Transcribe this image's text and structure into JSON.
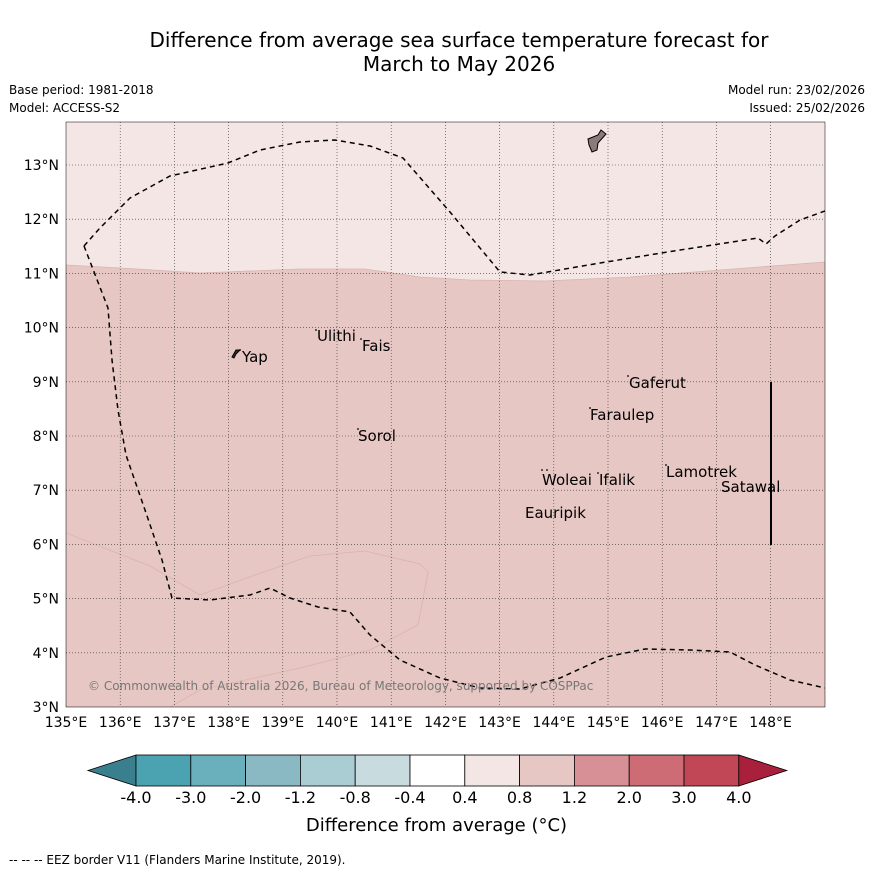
{
  "title_line1": "Difference from average sea surface temperature forecast for",
  "title_line2": "March to May 2026",
  "base_period": "Base period: 1981-2018",
  "model": "Model: ACCESS-S2",
  "model_run": "Model run: 23/02/2026",
  "issued": "Issued: 25/02/2026",
  "copyright": "© Commonwealth of Australia 2026, Bureau of Meteorology, supported by COSPPac",
  "footnote": "--  --  -- EEZ border V11 (Flanders Marine Institute, 2019).",
  "map": {
    "lon_range": [
      135,
      149
    ],
    "lat_range": [
      3,
      13.8
    ],
    "lon_labels": [
      "135°E",
      "136°E",
      "137°E",
      "138°E",
      "139°E",
      "140°E",
      "141°E",
      "142°E",
      "143°E",
      "144°E",
      "145°E",
      "146°E",
      "147°E",
      "148°E"
    ],
    "lat_labels": [
      "3°N",
      "4°N",
      "5°N",
      "6°N",
      "7°N",
      "8°N",
      "9°N",
      "10°N",
      "11°N",
      "12°N",
      "13°N"
    ],
    "islands": [
      {
        "name": "Yap"
      },
      {
        "name": "Ulithi"
      },
      {
        "name": "Fais"
      },
      {
        "name": "Gaferut"
      },
      {
        "name": "Faraulep"
      },
      {
        "name": "Sorol"
      },
      {
        "name": "Lamotrek"
      },
      {
        "name": "Woleai"
      },
      {
        "name": "Ifalik"
      },
      {
        "name": "Satawal"
      },
      {
        "name": "Eauripik"
      }
    ],
    "colors": {
      "anomaly_0_4_0_8": "#f4e6e5",
      "anomaly_0_8_1_2": "#e7c7c3"
    }
  },
  "colorbar": {
    "labels": [
      "-4.0",
      "-3.0",
      "-2.0",
      "-1.2",
      "-0.8",
      "-0.4",
      "0.4",
      "0.8",
      "1.2",
      "2.0",
      "3.0",
      "4.0"
    ],
    "colors": [
      "#3a7f8d",
      "#4ba3b2",
      "#6ab0bc",
      "#8ab9c4",
      "#aaccd3",
      "#c8dcdf",
      "#ffffff",
      "#f4e6e5",
      "#e7c7c3",
      "#d79096",
      "#cd6c75",
      "#c24756",
      "#a8203c"
    ],
    "unit_label": "Difference from average (°C)"
  }
}
